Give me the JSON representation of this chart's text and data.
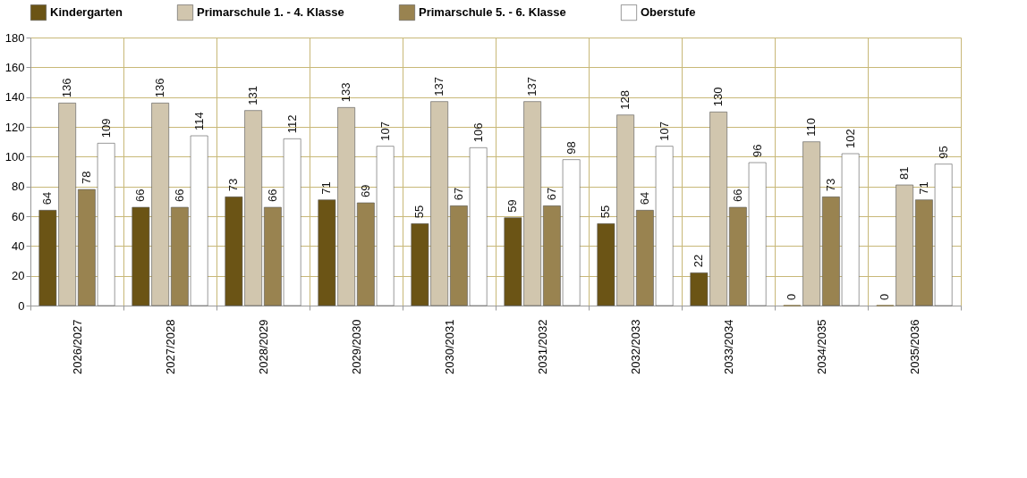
{
  "chart_data": {
    "type": "bar",
    "categories": [
      "2026/2027",
      "2027/2028",
      "2028/2029",
      "2029/2030",
      "2030/2031",
      "2031/2032",
      "2032/2033",
      "2033/2034",
      "2034/2035",
      "2035/2036"
    ],
    "series": [
      {
        "name": "Kindergarten",
        "color": "#6b5415",
        "values": [
          64,
          66,
          73,
          71,
          55,
          59,
          55,
          22,
          0,
          0
        ]
      },
      {
        "name": "Primarschule 1. - 4. Klasse",
        "color": "#d1c6ae",
        "values": [
          136,
          136,
          131,
          133,
          137,
          137,
          128,
          130,
          110,
          81
        ]
      },
      {
        "name": "Primarschule 5. - 6. Klasse",
        "color": "#998350",
        "values": [
          78,
          66,
          66,
          69,
          67,
          67,
          64,
          66,
          73,
          71
        ]
      },
      {
        "name": "Oberstufe",
        "color": "#ffffff",
        "values": [
          109,
          114,
          112,
          107,
          106,
          98,
          107,
          96,
          102,
          95
        ]
      }
    ],
    "ylim": [
      0,
      180
    ],
    "yticks": [
      0,
      20,
      40,
      60,
      80,
      100,
      120,
      140,
      160,
      180
    ],
    "grid": true,
    "legend": "top",
    "data_labels": true
  }
}
